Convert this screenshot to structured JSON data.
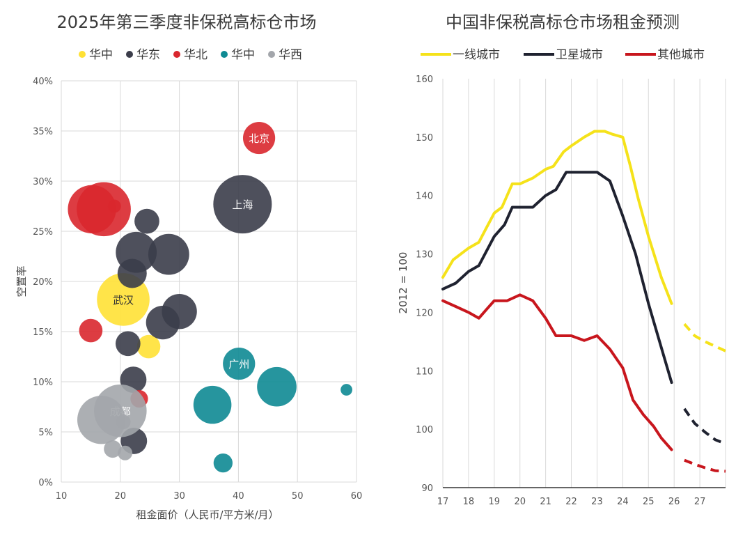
{
  "charts": [
    {
      "title": "2025年第三季度非保税高标仓市场",
      "xlabel": "租金面价（人民币/平方米/月）",
      "ylabel": "空置率"
    },
    {
      "title": "中国非保税高标仓市场租金预测",
      "ylabel": "2012 = 100"
    }
  ],
  "colors": {
    "yellow": "#ffe135",
    "dark": "#3b3d4a",
    "red": "#d9272e",
    "teal": "#0e8a93",
    "grey": "#a3a6ab",
    "line_yellow": "#f5e21a",
    "line_dark": "#1f2230",
    "line_red": "#c8161d"
  },
  "chart_data": [
    {
      "type": "scatter",
      "subtype": "bubble",
      "title": "2025年第三季度非保税高标仓市场",
      "xlabel": "租金面价（人民币/平方米/月）",
      "ylabel": "空置率",
      "xlim": [
        10,
        60
      ],
      "ylim": [
        0,
        40
      ],
      "x_ticks": [
        10,
        20,
        30,
        40,
        50,
        60
      ],
      "y_ticks": [
        "0%",
        "5%",
        "10%",
        "15%",
        "20%",
        "25%",
        "30%",
        "35%",
        "40%"
      ],
      "legend_position": "top",
      "grid": true,
      "series": [
        {
          "name": "华中",
          "color": "yellow",
          "points": [
            {
              "x": 20.5,
              "y": 18.2,
              "size": 3.6,
              "label": "武汉"
            },
            {
              "x": 24.8,
              "y": 13.5,
              "size": 1.6
            }
          ]
        },
        {
          "name": "华东",
          "color": "dark",
          "points": [
            {
              "x": 40.7,
              "y": 27.7,
              "size": 4.0,
              "label": "上海"
            },
            {
              "x": 24.5,
              "y": 26.0,
              "size": 1.7
            },
            {
              "x": 22.7,
              "y": 22.9,
              "size": 2.8
            },
            {
              "x": 28.2,
              "y": 22.7,
              "size": 2.8
            },
            {
              "x": 22.0,
              "y": 20.8,
              "size": 2.0
            },
            {
              "x": 30.0,
              "y": 17.0,
              "size": 2.4
            },
            {
              "x": 27.2,
              "y": 15.9,
              "size": 2.3
            },
            {
              "x": 21.3,
              "y": 13.8,
              "size": 1.7
            },
            {
              "x": 22.2,
              "y": 10.2,
              "size": 1.8
            },
            {
              "x": 22.3,
              "y": 4.1,
              "size": 1.8
            }
          ]
        },
        {
          "name": "华北",
          "color": "red",
          "points": [
            {
              "x": 43.5,
              "y": 34.3,
              "size": 2.2,
              "label": "北京"
            },
            {
              "x": 15.2,
              "y": 27.2,
              "size": 3.3
            },
            {
              "x": 17.2,
              "y": 27.2,
              "size": 3.7
            },
            {
              "x": 19.0,
              "y": 27.5,
              "size": 0.9
            },
            {
              "x": 15.0,
              "y": 15.1,
              "size": 1.6
            },
            {
              "x": 23.2,
              "y": 8.3,
              "size": 1.2
            }
          ]
        },
        {
          "name": "华中",
          "color": "teal",
          "points": [
            {
              "x": 40.1,
              "y": 11.8,
              "size": 2.2,
              "label": "广州"
            },
            {
              "x": 46.5,
              "y": 9.5,
              "size": 2.7
            },
            {
              "x": 35.6,
              "y": 7.7,
              "size": 2.6
            },
            {
              "x": 37.4,
              "y": 1.9,
              "size": 1.3
            },
            {
              "x": 58.3,
              "y": 9.2,
              "size": 0.8
            }
          ]
        },
        {
          "name": "华西",
          "color": "grey",
          "points": [
            {
              "x": 20.0,
              "y": 7.1,
              "size": 3.6,
              "label": "成都"
            },
            {
              "x": 16.8,
              "y": 6.2,
              "size": 3.3
            },
            {
              "x": 20.5,
              "y": 6.0,
              "size": 1.0
            },
            {
              "x": 18.7,
              "y": 3.3,
              "size": 1.2
            },
            {
              "x": 20.8,
              "y": 2.9,
              "size": 1.0
            }
          ]
        }
      ]
    },
    {
      "type": "line",
      "title": "中国非保税高标仓市场租金预测",
      "ylabel": "2012 = 100",
      "xlim": [
        17,
        28
      ],
      "ylim": [
        90,
        160
      ],
      "x_ticks": [
        "17",
        "18",
        "19",
        "20",
        "21",
        "22",
        "23",
        "24",
        "25",
        "26",
        "27"
      ],
      "y_ticks": [
        90,
        100,
        110,
        120,
        130,
        140,
        150,
        160
      ],
      "legend_position": "top",
      "grid": "vertical",
      "series": [
        {
          "name": "一线城市",
          "color": "line_yellow",
          "x": [
            17,
            17.4,
            18,
            18.4,
            18.7,
            19,
            19.3,
            19.7,
            20,
            20.5,
            21,
            21.3,
            21.7,
            22,
            22.5,
            22.9,
            23.3,
            23.6,
            24,
            24.3,
            24.6,
            25,
            25.5,
            25.9
          ],
          "y": [
            126,
            129,
            131,
            132,
            134.5,
            137,
            138,
            142,
            142,
            143,
            144.5,
            145,
            147.5,
            148.5,
            150,
            151,
            151,
            150.5,
            150,
            145,
            139.5,
            133,
            126,
            121.5
          ]
        },
        {
          "name": "卫星城市",
          "color": "line_dark",
          "x": [
            17,
            17.5,
            18,
            18.4,
            18.7,
            19,
            19.4,
            19.7,
            20,
            20.5,
            21,
            21.4,
            21.8,
            22,
            22.3,
            22.7,
            23,
            23.5,
            24,
            24.5,
            25,
            25.5,
            25.9
          ],
          "y": [
            124,
            125,
            127,
            128,
            130.5,
            133,
            135,
            138,
            138,
            138,
            140,
            141,
            144,
            144,
            144,
            144,
            144,
            142.5,
            136.5,
            130,
            121.5,
            114,
            108
          ]
        },
        {
          "name": "其他城市",
          "color": "line_red",
          "x": [
            17,
            17.5,
            18,
            18.4,
            18.7,
            19,
            19.5,
            20,
            20.5,
            21,
            21.4,
            21.8,
            22,
            22.5,
            23,
            23.5,
            24,
            24.4,
            24.8,
            25.2,
            25.5,
            25.9
          ],
          "y": [
            122,
            121,
            120,
            119,
            120.5,
            122,
            122,
            123,
            122,
            119,
            116,
            116,
            116,
            115.2,
            116,
            113.7,
            110.5,
            105,
            102.5,
            100.5,
            98.5,
            96.5
          ]
        }
      ],
      "forecast": [
        {
          "series": "一线城市",
          "x": [
            26.4,
            26.8,
            27.2,
            27.6,
            28
          ],
          "y": [
            118,
            116,
            115,
            114.2,
            113.4
          ]
        },
        {
          "series": "卫星城市",
          "x": [
            26.4,
            26.8,
            27.2,
            27.6,
            28
          ],
          "y": [
            103.5,
            101,
            99.5,
            98.2,
            97.5
          ]
        },
        {
          "series": "其他城市",
          "x": [
            26.4,
            26.8,
            27.2,
            27.6,
            28
          ],
          "y": [
            94.7,
            94,
            93.4,
            92.9,
            92.8
          ]
        }
      ]
    }
  ]
}
